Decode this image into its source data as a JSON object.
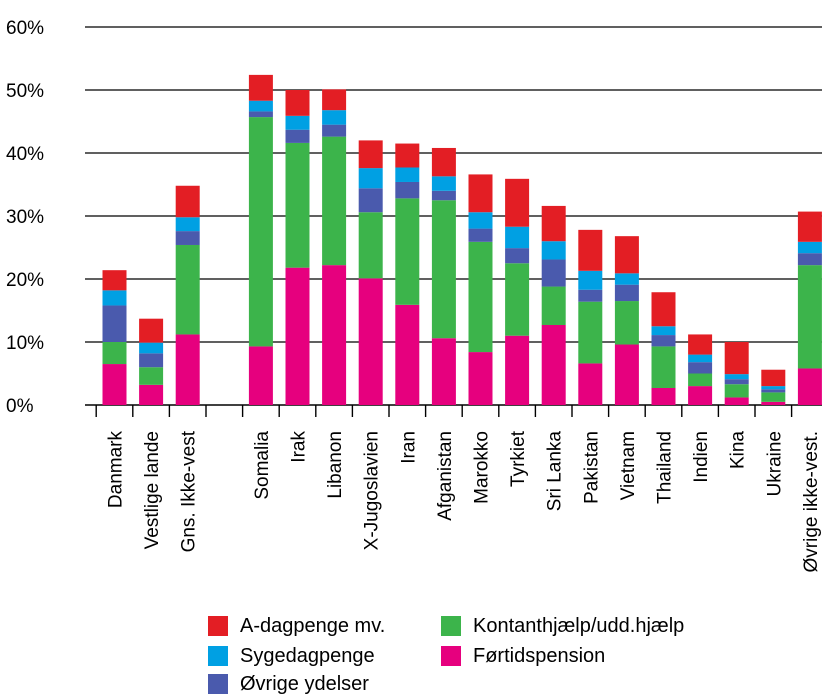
{
  "chart_data": {
    "type": "bar",
    "stacked": true,
    "title": "",
    "xlabel": "",
    "ylabel": "",
    "ylim": [
      0,
      60
    ],
    "y_ticks": [
      "0%",
      "10%",
      "20%",
      "30%",
      "40%",
      "50%",
      "60%"
    ],
    "grid": true,
    "legend_position": "bottom",
    "categories": [
      "Danmark",
      "Vestlige lande",
      "Gns. Ikke-vest",
      "",
      "Somalia",
      "Irak",
      "Libanon",
      "X-Jugoslavien",
      "Iran",
      "Afganistan",
      "Marokko",
      "Tyrkiet",
      "Sri Lanka",
      "Pakistan",
      "Vietnam",
      "Thailand",
      "Indien",
      "Kina",
      "Ukraine",
      "Øvrige ikke-vest."
    ],
    "series": [
      {
        "name": "Førtidspension",
        "color": "#e6007e",
        "values": [
          6.5,
          3.2,
          11.2,
          null,
          9.3,
          21.8,
          22.2,
          20.1,
          15.9,
          10.6,
          8.4,
          11.0,
          12.7,
          6.6,
          9.6,
          2.7,
          3.0,
          1.2,
          0.5,
          5.8
        ]
      },
      {
        "name": "Kontanthjælp/udd.hjælp",
        "color": "#3cb44b",
        "values": [
          3.5,
          2.8,
          14.2,
          null,
          36.4,
          19.8,
          20.4,
          10.5,
          16.9,
          21.9,
          17.5,
          11.5,
          6.1,
          9.8,
          6.9,
          6.6,
          2.0,
          2.1,
          1.5,
          16.4
        ]
      },
      {
        "name": "Øvrige ydelser",
        "color": "#4a5aad",
        "values": [
          5.8,
          2.2,
          2.2,
          null,
          0.9,
          2.1,
          1.9,
          3.8,
          2.6,
          1.5,
          2.1,
          2.4,
          4.3,
          1.9,
          2.6,
          1.8,
          1.8,
          0.8,
          0.5,
          1.9
        ]
      },
      {
        "name": "Sygedagpenge",
        "color": "#00a0e3",
        "values": [
          2.4,
          1.7,
          2.2,
          null,
          1.7,
          2.2,
          2.3,
          3.2,
          2.3,
          2.3,
          2.6,
          3.4,
          2.9,
          3.0,
          1.8,
          1.4,
          1.2,
          0.8,
          0.5,
          1.8
        ]
      },
      {
        "name": "A-dagpenge mv.",
        "color": "#e31e24",
        "values": [
          3.2,
          3.8,
          5.0,
          null,
          4.1,
          4.1,
          3.3,
          4.4,
          3.8,
          4.5,
          6.0,
          7.6,
          5.6,
          6.5,
          5.9,
          5.4,
          3.2,
          5.1,
          2.6,
          4.8
        ]
      }
    ]
  },
  "legend": {
    "items": [
      {
        "label": "A-dagpenge mv.",
        "color": "#e31e24"
      },
      {
        "label": "Sygedagpenge",
        "color": "#00a0e3"
      },
      {
        "label": "Øvrige ydelser",
        "color": "#4a5aad"
      },
      {
        "label": "Kontanthjælp/udd.hjælp",
        "color": "#3cb44b"
      },
      {
        "label": "Førtidspension",
        "color": "#e6007e"
      }
    ]
  }
}
